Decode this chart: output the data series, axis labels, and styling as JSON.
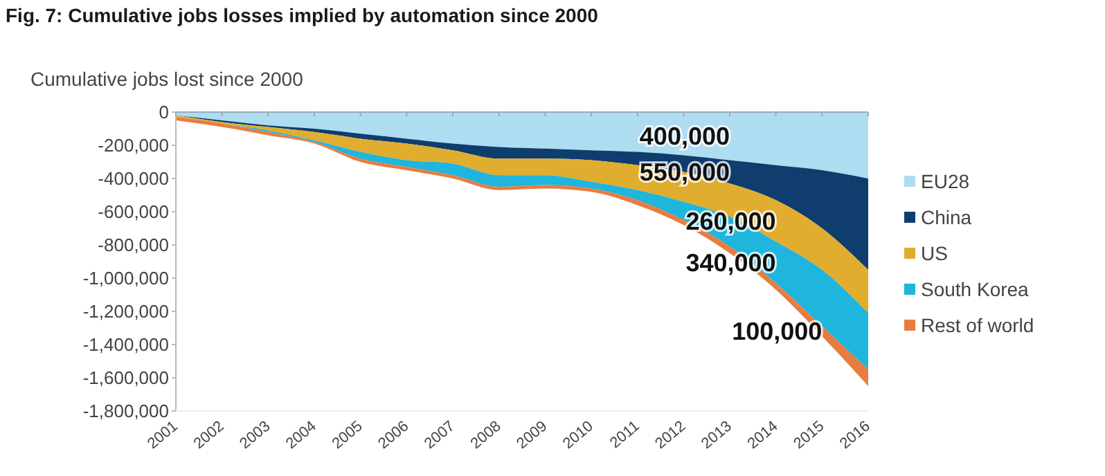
{
  "chart_data": {
    "type": "area",
    "stacked": true,
    "title": "Fig. 7: Cumulative jobs losses implied by automation since 2000",
    "ylabel": "Cumulative jobs lost since 2000",
    "categories": [
      "2001",
      "2002",
      "2003",
      "2004",
      "2005",
      "2006",
      "2007",
      "2008",
      "2009",
      "2010",
      "2011",
      "2012",
      "2013",
      "2014",
      "2015",
      "2016"
    ],
    "series": [
      {
        "name": "EU28",
        "color": "#aedcf0",
        "values": [
          -20000,
          -50000,
          -80000,
          -100000,
          -130000,
          -160000,
          -190000,
          -210000,
          -220000,
          -230000,
          -240000,
          -260000,
          -290000,
          -320000,
          -350000,
          -400000
        ]
      },
      {
        "name": "China",
        "color": "#0e3d6e",
        "values": [
          0,
          -10000,
          -10000,
          -20000,
          -30000,
          -30000,
          -40000,
          -70000,
          -60000,
          -60000,
          -80000,
          -100000,
          -140000,
          -210000,
          -350000,
          -550000
        ]
      },
      {
        "name": "US",
        "color": "#e0ad2e",
        "values": [
          -10000,
          -10000,
          -20000,
          -50000,
          -80000,
          -100000,
          -80000,
          -100000,
          -100000,
          -130000,
          -150000,
          -180000,
          -200000,
          -250000,
          -250000,
          -260000
        ]
      },
      {
        "name": "South Korea",
        "color": "#1fb5dc",
        "values": [
          0,
          0,
          -10000,
          -10000,
          -40000,
          -40000,
          -70000,
          -70000,
          -60000,
          -40000,
          -60000,
          -110000,
          -180000,
          -250000,
          -340000,
          -340000
        ]
      },
      {
        "name": "Rest of world",
        "color": "#e87c3e",
        "values": [
          -20000,
          -20000,
          -20000,
          -10000,
          -20000,
          -20000,
          -20000,
          -20000,
          -20000,
          -20000,
          -30000,
          -30000,
          -40000,
          -40000,
          -60000,
          -100000
        ]
      }
    ],
    "ylim": [
      -1800000,
      0
    ],
    "yticks": [
      {
        "value": 0,
        "label": "0"
      },
      {
        "value": -200000,
        "label": "-200,000"
      },
      {
        "value": -400000,
        "label": "-400,000"
      },
      {
        "value": -600000,
        "label": "-600,000"
      },
      {
        "value": -800000,
        "label": "-800,000"
      },
      {
        "value": -1000000,
        "label": "-1,000,000"
      },
      {
        "value": -1200000,
        "label": "-1,200,000"
      },
      {
        "value": -1400000,
        "label": "-1,400,000"
      },
      {
        "value": -1600000,
        "label": "-1,600,000"
      },
      {
        "value": -1800000,
        "label": "-1,800,000"
      }
    ],
    "annotations": [
      "400,000",
      "550,000",
      "260,000",
      "340,000",
      "100,000"
    ],
    "grid": false,
    "legend": "right"
  }
}
